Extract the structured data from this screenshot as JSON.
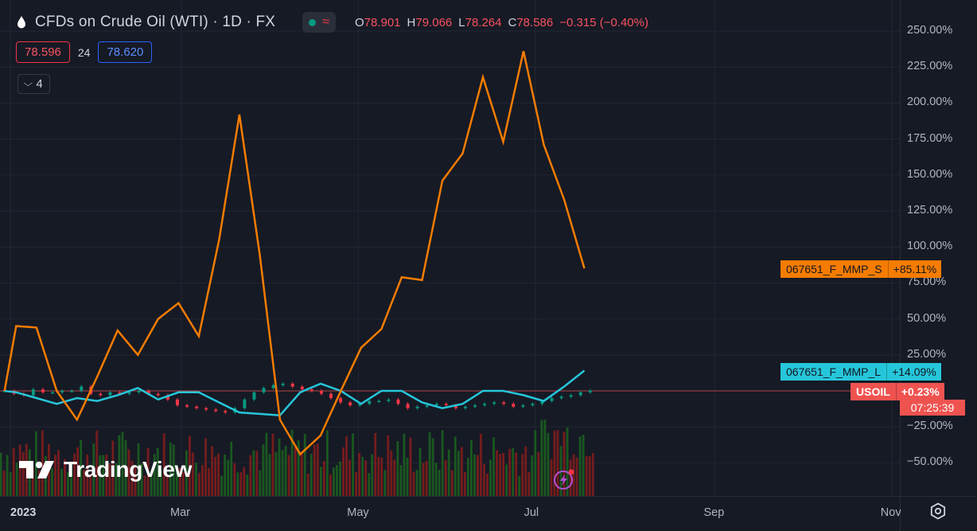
{
  "header": {
    "symbol_title": "CFDs on Crude Oil (WTI) · 1D · FX",
    "ohlc": {
      "o_label": "O",
      "o_value": "78.901",
      "h_label": "H",
      "h_value": "79.066",
      "l_label": "L",
      "l_value": "78.264",
      "c_label": "C",
      "c_value": "78.586",
      "change": "−0.315 (−0.40%)"
    },
    "sell_price": "78.596",
    "spread": "24",
    "buy_price": "78.620",
    "collapsed_indicators": "4"
  },
  "colors": {
    "background": "#161a25",
    "series_s": "#f57c00",
    "series_l": "#26c6da",
    "up": "#089981",
    "down": "#f23645",
    "volume_up": "#1b5e20",
    "volume_down": "#7f1d1d"
  },
  "branding": {
    "logo_text": "TradingView"
  },
  "tags": {
    "series_s_name": "067651_F_MMP_S",
    "series_s_value": "+85.11%",
    "series_l_name": "067651_F_MMP_L",
    "series_l_value": "+14.09%",
    "main_name": "USOIL",
    "main_value": "+0.23%",
    "countdown": "07:25:39"
  },
  "chart_data": {
    "type": "line",
    "y_axis": {
      "unit": "percent",
      "ylim": [
        -65,
        260
      ],
      "ticks": [
        "250.00%",
        "225.00%",
        "200.00%",
        "175.00%",
        "150.00%",
        "125.00%",
        "100.00%",
        "75.00%",
        "50.00%",
        "25.00%",
        "−25.00%",
        "−50.00%"
      ],
      "tick_values": [
        250,
        225,
        200,
        175,
        150,
        125,
        100,
        75,
        50,
        25,
        -25,
        -50
      ]
    },
    "x_axis": {
      "ticks": [
        "2023",
        "Mar",
        "May",
        "Jul",
        "Sep",
        "Nov"
      ],
      "tick_dates": [
        "2023-01-01",
        "2023-03-01",
        "2023-05-01",
        "2023-07-01",
        "2023-09-01",
        "2023-11-01"
      ]
    },
    "series": [
      {
        "name": "067651_F_MMP_S",
        "color": "#f57c00",
        "points": [
          [
            "2022-12-30",
            0
          ],
          [
            "2023-01-03",
            45
          ],
          [
            "2023-01-10",
            44
          ],
          [
            "2023-01-17",
            0
          ],
          [
            "2023-01-24",
            -20
          ],
          [
            "2023-01-31",
            10
          ],
          [
            "2023-02-07",
            42
          ],
          [
            "2023-02-14",
            25
          ],
          [
            "2023-02-21",
            50
          ],
          [
            "2023-02-28",
            61
          ],
          [
            "2023-03-07",
            38
          ],
          [
            "2023-03-14",
            105
          ],
          [
            "2023-03-21",
            192
          ],
          [
            "2023-03-28",
            95
          ],
          [
            "2023-04-04",
            -20
          ],
          [
            "2023-04-11",
            -44
          ],
          [
            "2023-04-18",
            -31
          ],
          [
            "2023-04-25",
            0
          ],
          [
            "2023-05-02",
            30
          ],
          [
            "2023-05-09",
            43
          ],
          [
            "2023-05-16",
            79
          ],
          [
            "2023-05-23",
            77
          ],
          [
            "2023-05-30",
            146
          ],
          [
            "2023-06-06",
            165
          ],
          [
            "2023-06-13",
            218
          ],
          [
            "2023-06-20",
            173
          ],
          [
            "2023-06-27",
            236
          ],
          [
            "2023-07-04",
            171
          ],
          [
            "2023-07-11",
            133
          ],
          [
            "2023-07-18",
            85.11
          ]
        ]
      },
      {
        "name": "067651_F_MMP_L",
        "color": "#26c6da",
        "points": [
          [
            "2022-12-30",
            0
          ],
          [
            "2023-01-03",
            -1
          ],
          [
            "2023-01-10",
            -5
          ],
          [
            "2023-01-17",
            -9
          ],
          [
            "2023-01-24",
            -5
          ],
          [
            "2023-01-31",
            -7
          ],
          [
            "2023-02-07",
            -3
          ],
          [
            "2023-02-14",
            2
          ],
          [
            "2023-02-21",
            -6
          ],
          [
            "2023-02-28",
            -1
          ],
          [
            "2023-03-07",
            -1
          ],
          [
            "2023-03-14",
            -8
          ],
          [
            "2023-03-21",
            -15
          ],
          [
            "2023-03-28",
            -16
          ],
          [
            "2023-04-04",
            -17
          ],
          [
            "2023-04-11",
            -1
          ],
          [
            "2023-04-18",
            5
          ],
          [
            "2023-04-25",
            0
          ],
          [
            "2023-05-02",
            -9
          ],
          [
            "2023-05-09",
            0
          ],
          [
            "2023-05-16",
            0
          ],
          [
            "2023-05-23",
            -8
          ],
          [
            "2023-05-30",
            -12
          ],
          [
            "2023-06-06",
            -9
          ],
          [
            "2023-06-13",
            0
          ],
          [
            "2023-06-20",
            0
          ],
          [
            "2023-06-27",
            -3
          ],
          [
            "2023-07-04",
            -7
          ],
          [
            "2023-07-11",
            3
          ],
          [
            "2023-07-18",
            14.09
          ]
        ]
      },
      {
        "name": "USOIL",
        "type": "candlestick",
        "values_pct_close": [
          0,
          -2,
          -3,
          1,
          -1,
          -1,
          0,
          0,
          3,
          -2,
          -3,
          -1,
          -2,
          -1,
          0,
          -2,
          -3,
          -6,
          -10,
          -11,
          -12,
          -13,
          -14,
          -15,
          -12,
          -6,
          -1,
          2,
          4,
          5,
          3,
          1,
          0,
          -2,
          -5,
          -8,
          -10,
          -9,
          -7,
          -7,
          -6,
          -9,
          -12,
          -11,
          -10,
          -9,
          -10,
          -12,
          -11,
          -10,
          -9,
          -8,
          -9,
          -11,
          -10,
          -9,
          -7,
          -5,
          -4,
          -3,
          -1,
          0.23
        ],
        "last": 0.23
      }
    ]
  }
}
